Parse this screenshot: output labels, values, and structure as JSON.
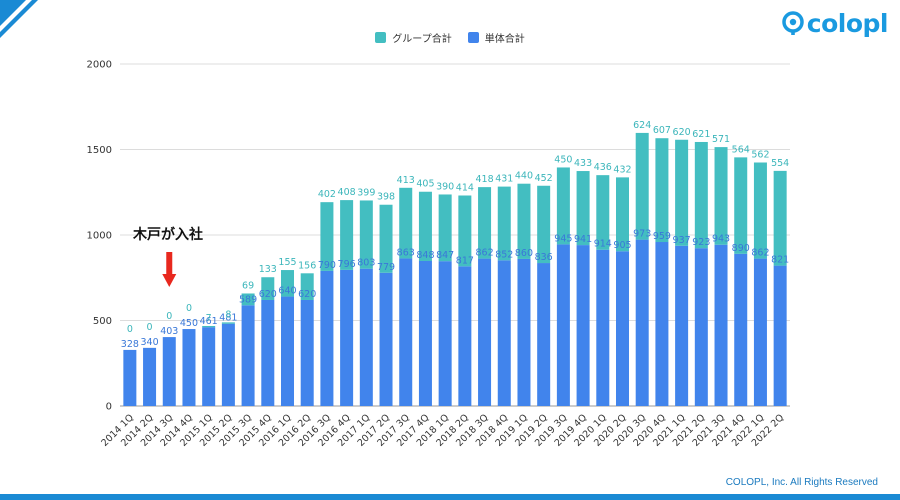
{
  "logo": {
    "text": "colopl",
    "icon": "colopl-logo-icon"
  },
  "footer": {
    "copyright": "COLOPL, Inc. All Rights Reserved"
  },
  "annotation": {
    "text": "木戸が入社",
    "arrow_color": "#e8281e",
    "category": "2014 3Q"
  },
  "legend": [
    {
      "label": "グループ合計",
      "color": "#43bec1"
    },
    {
      "label": "単体合計",
      "color": "#4184ec"
    }
  ],
  "chart_data": {
    "type": "bar",
    "stacked": true,
    "categories": [
      "2014 1Q",
      "2014 2Q",
      "2014 3Q",
      "2014 4Q",
      "2015 1Q",
      "2015 2Q",
      "2015 3Q",
      "2015 4Q",
      "2016 1Q",
      "2016 2Q",
      "2016 3Q",
      "2016 4Q",
      "2017 1Q",
      "2017 2Q",
      "2017 3Q",
      "2017 4Q",
      "2018 1Q",
      "2018 2Q",
      "2018 3Q",
      "2018 4Q",
      "2019 1Q",
      "2019 2Q",
      "2019 3Q",
      "2019 4Q",
      "2020 1Q",
      "2020 2Q",
      "2020 3Q",
      "2020 4Q",
      "2021 1Q",
      "2021 2Q",
      "2021 3Q",
      "2021 4Q",
      "2022 1Q",
      "2022 2Q"
    ],
    "series": [
      {
        "name": "単体合計",
        "color": "#4184ec",
        "values": [
          328,
          340,
          403,
          450,
          461,
          481,
          589,
          620,
          640,
          620,
          790,
          796,
          803,
          779,
          863,
          848,
          847,
          817,
          862,
          852,
          860,
          836,
          945,
          941,
          914,
          905,
          973,
          959,
          937,
          923,
          943,
          890,
          862,
          821
        ]
      },
      {
        "name": "グループ合計",
        "color": "#43bec1",
        "values": [
          0,
          0,
          0,
          0,
          7,
          8,
          69,
          133,
          155,
          156,
          402,
          408,
          399,
          398,
          413,
          405,
          390,
          414,
          418,
          431,
          440,
          452,
          450,
          433,
          436,
          432,
          624,
          607,
          620,
          621,
          571,
          564,
          562,
          554
        ]
      }
    ],
    "ylim": [
      0,
      2000
    ],
    "yticks": [
      0,
      500,
      1000,
      1500,
      2000
    ],
    "grid": true,
    "legend_position": "top-center",
    "xlabel": "",
    "ylabel": ""
  }
}
